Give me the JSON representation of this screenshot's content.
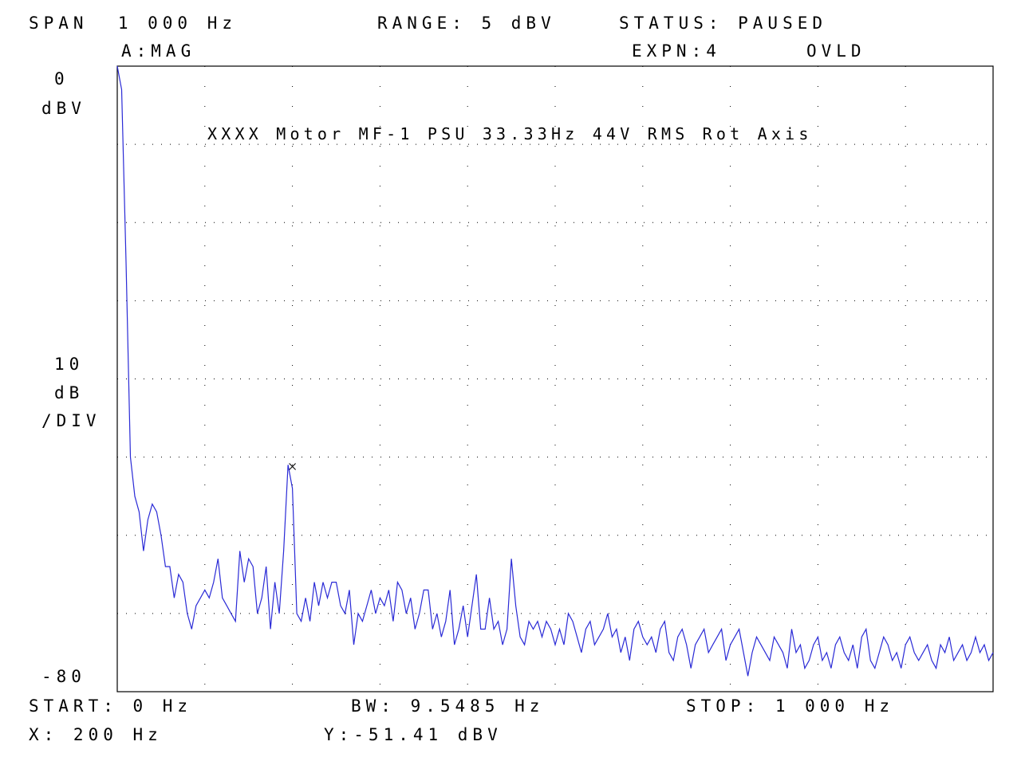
{
  "header": {
    "span": "SPAN  1 000 Hz",
    "range": "RANGE: 5 dBV",
    "status": "STATUS: PAUSED",
    "trace": "A:MAG",
    "expansion": "EXPN:4",
    "overload": "OVLD"
  },
  "y_axis": {
    "top_value": "0",
    "top_unit": "dBV",
    "scale_value": "10",
    "scale_unit": "dB",
    "scale_per": "/DIV",
    "bottom_value": "-80"
  },
  "footer": {
    "start": "START: 0 Hz",
    "bw": "BW: 9.5485 Hz",
    "stop": "STOP: 1 000 Hz",
    "marker_x": "X: 200 Hz",
    "marker_y": "Y:-51.41 dBV"
  },
  "colors": {
    "trace": "#2a2ad6",
    "frame": "#000000",
    "grid": "#000000"
  },
  "chart_data": {
    "type": "line",
    "title": "XXXX Motor MF-1 PSU 33.33Hz 44V RMS Rot Axis",
    "xlabel": "",
    "ylabel": "",
    "x_range": [
      0,
      1000
    ],
    "ylim": [
      -80,
      0
    ],
    "x_unit": "Hz",
    "y_unit": "dBV",
    "grid": true,
    "grid_divisions_x": 10,
    "grid_divisions_y": 8,
    "marker": {
      "x": 200,
      "y": -51.41
    },
    "series": [
      {
        "x": [
          0,
          5,
          10,
          15,
          20,
          25,
          30,
          35,
          40,
          45,
          50,
          55,
          60,
          65,
          70,
          75,
          80,
          85,
          90,
          95,
          100,
          105,
          110,
          115,
          120,
          125,
          130,
          135,
          140,
          145,
          150,
          155,
          160,
          165,
          170,
          175,
          180,
          185,
          190,
          195,
          200,
          205,
          210,
          215,
          220,
          225,
          230,
          235,
          240,
          245,
          250,
          255,
          260,
          265,
          270,
          275,
          280,
          285,
          290,
          295,
          300,
          305,
          310,
          315,
          320,
          325,
          330,
          335,
          340,
          345,
          350,
          355,
          360,
          365,
          370,
          375,
          380,
          385,
          390,
          395,
          400,
          405,
          410,
          415,
          420,
          425,
          430,
          435,
          440,
          445,
          450,
          455,
          460,
          465,
          470,
          475,
          480,
          485,
          490,
          495,
          500,
          505,
          510,
          515,
          520,
          525,
          530,
          535,
          540,
          545,
          550,
          555,
          560,
          565,
          570,
          575,
          580,
          585,
          590,
          595,
          600,
          605,
          610,
          615,
          620,
          625,
          630,
          635,
          640,
          645,
          650,
          655,
          660,
          665,
          670,
          675,
          680,
          685,
          690,
          695,
          700,
          705,
          710,
          715,
          720,
          725,
          730,
          735,
          740,
          745,
          750,
          755,
          760,
          765,
          770,
          775,
          780,
          785,
          790,
          795,
          800,
          805,
          810,
          815,
          820,
          825,
          830,
          835,
          840,
          845,
          850,
          855,
          860,
          865,
          870,
          875,
          880,
          885,
          890,
          895,
          900,
          905,
          910,
          915,
          920,
          925,
          930,
          935,
          940,
          945,
          950,
          955,
          960,
          965,
          970,
          975,
          980,
          985,
          990,
          995,
          1000
        ],
        "y": [
          0,
          -3,
          -25,
          -50,
          -55,
          -57,
          -62,
          -58,
          -56,
          -57,
          -60,
          -64,
          -64,
          -68,
          -65,
          -66,
          -70,
          -72,
          -69,
          -68,
          -67,
          -68,
          -66,
          -63,
          -68,
          -69,
          -70,
          -71,
          -62,
          -66,
          -63,
          -64,
          -70,
          -68,
          -64,
          -72,
          -66,
          -70,
          -62,
          -51,
          -54,
          -70,
          -71,
          -68,
          -71,
          -66,
          -69,
          -66,
          -68,
          -66,
          -66,
          -69,
          -70,
          -67,
          -74,
          -70,
          -71,
          -69,
          -67,
          -70,
          -68,
          -69,
          -67,
          -71,
          -66,
          -67,
          -70,
          -68,
          -72,
          -70,
          -67,
          -67,
          -72,
          -70,
          -73,
          -71,
          -67,
          -74,
          -72,
          -69,
          -73,
          -69,
          -65,
          -72,
          -72,
          -68,
          -72,
          -71,
          -74,
          -72,
          -63,
          -69,
          -73,
          -74,
          -71,
          -72,
          -71,
          -73,
          -71,
          -72,
          -74,
          -72,
          -74,
          -70,
          -71,
          -73,
          -75,
          -72,
          -71,
          -74,
          -73,
          -72,
          -70,
          -73,
          -72,
          -75,
          -73,
          -76,
          -72,
          -71,
          -73,
          -74,
          -73,
          -75,
          -72,
          -71,
          -75,
          -76,
          -73,
          -72,
          -74,
          -77,
          -74,
          -73,
          -72,
          -75,
          -74,
          -73,
          -72,
          -76,
          -74,
          -73,
          -72,
          -75,
          -78,
          -75,
          -73,
          -74,
          -75,
          -76,
          -73,
          -74,
          -75,
          -77,
          -72,
          -75,
          -74,
          -77,
          -76,
          -74,
          -73,
          -76,
          -75,
          -77,
          -74,
          -73,
          -75,
          -76,
          -74,
          -77,
          -73,
          -72,
          -76,
          -77,
          -75,
          -73,
          -74,
          -76,
          -75,
          -77,
          -74,
          -73,
          -75,
          -76,
          -75,
          -74,
          -76,
          -77,
          -74,
          -75,
          -73,
          -76,
          -75,
          -74,
          -76,
          -75,
          -73,
          -75,
          -74,
          -76,
          -75
        ]
      }
    ]
  }
}
